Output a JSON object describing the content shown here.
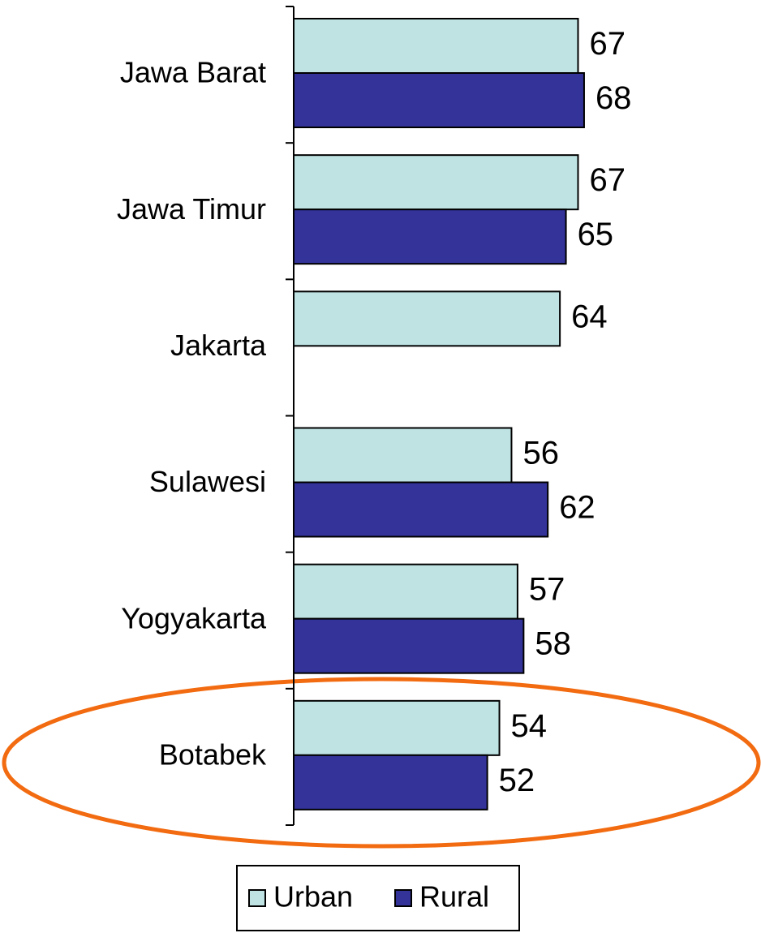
{
  "chart_data": {
    "type": "bar",
    "orientation": "horizontal",
    "categories": [
      "Jawa Barat",
      "Jawa Timur",
      "Jakarta",
      "Sulawesi",
      "Yogyakarta",
      "Botabek"
    ],
    "series": [
      {
        "name": "Urban",
        "color": "#bfe3e3",
        "values": [
          67,
          67,
          64,
          56,
          57,
          54
        ]
      },
      {
        "name": "Rural",
        "color": "#333399",
        "values": [
          68,
          65,
          null,
          62,
          58,
          52
        ]
      }
    ],
    "xlim": [
      20,
      90
    ],
    "legend": "bottom"
  }
}
